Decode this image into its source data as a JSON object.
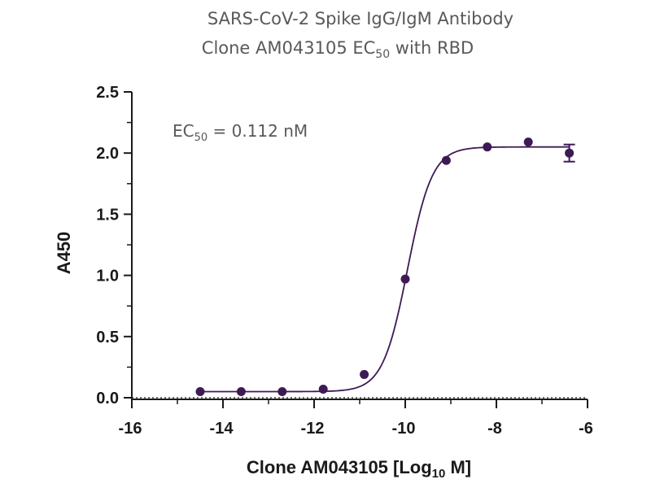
{
  "chart_data": {
    "type": "scatter",
    "title_line1": "SARS-CoV-2 Spike IgG/IgM Antibody",
    "title_line2_main": "Clone AM043105 EC",
    "title_line2_sub": "50",
    "title_line2_tail": " with RBD",
    "xlabel_main": "Clone AM043105 [Log",
    "xlabel_sub": "10",
    "xlabel_tail": " M]",
    "ylabel": "A450",
    "xlim": [
      -16,
      -6
    ],
    "ylim": [
      0,
      2.5
    ],
    "x_ticks": [
      -16,
      -14,
      -12,
      -10,
      -8,
      -6
    ],
    "y_ticks": [
      0.0,
      0.5,
      1.0,
      1.5,
      2.0,
      2.5
    ],
    "x_tick_labels": [
      "-16",
      "-14",
      "-12",
      "-10",
      "-8",
      "-6"
    ],
    "y_tick_labels": [
      "0.0",
      "0.5",
      "1.0",
      "1.5",
      "2.0",
      "2.5"
    ],
    "annotation_main": "EC",
    "annotation_sub": "50",
    "annotation_tail": " = 0.112 nM",
    "series": [
      {
        "x": [
          -14.5,
          -13.6,
          -12.7,
          -11.8,
          -10.9,
          -10.0,
          -9.1,
          -8.2,
          -7.3,
          -6.4
        ],
        "y": [
          0.05,
          0.05,
          0.05,
          0.07,
          0.19,
          0.97,
          1.94,
          2.05,
          2.09,
          2.0
        ],
        "y_error": [
          0,
          0,
          0,
          0,
          0,
          0,
          0,
          0,
          0,
          0.07
        ]
      }
    ],
    "fit": {
      "model": "4PL",
      "bottom": 0.05,
      "top": 2.05,
      "log_ec50": -9.95,
      "hill_slope": 1.6
    },
    "colors": {
      "series": "#3d1a55",
      "axis": "#1a1a1a",
      "title": "#595959"
    }
  }
}
